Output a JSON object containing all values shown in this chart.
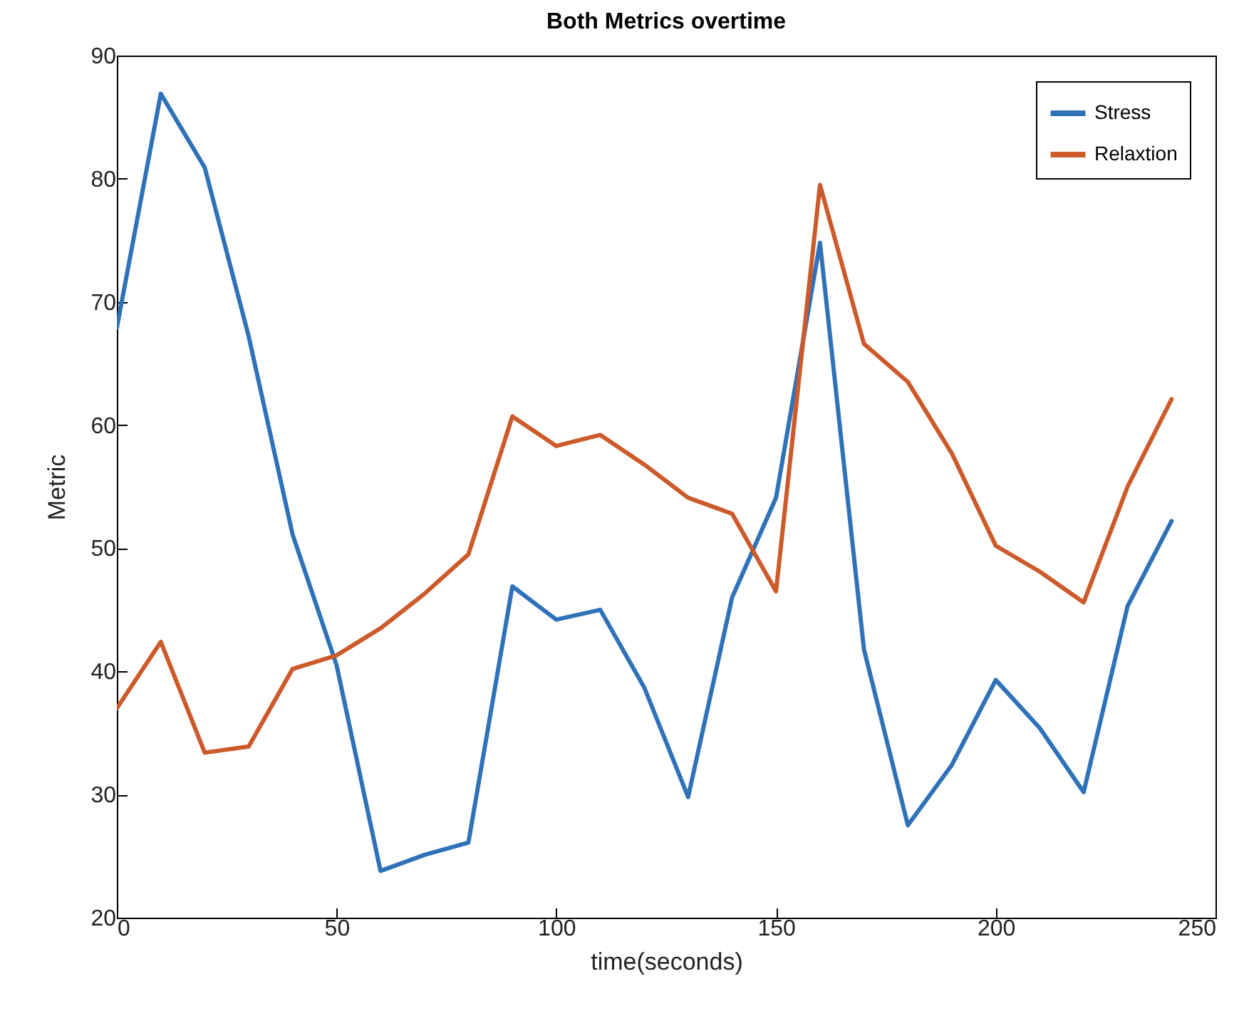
{
  "chart_data": {
    "type": "line",
    "title": "Both Metrics overtime",
    "xlabel": "time(seconds)",
    "ylabel": "Metric",
    "x": [
      0,
      10,
      20,
      30,
      40,
      50,
      60,
      70,
      80,
      90,
      100,
      110,
      120,
      130,
      140,
      150,
      160,
      170,
      180,
      190,
      200,
      210,
      220,
      230,
      240
    ],
    "series": [
      {
        "name": "Stress",
        "color": "#2f72b8",
        "values": [
          67.9,
          86.9,
          80.9,
          67.2,
          51.1,
          40.5,
          23.8,
          25.1,
          26.1,
          46.9,
          44.2,
          45.0,
          38.7,
          29.8,
          46.0,
          54.1,
          74.8,
          41.8,
          27.5,
          32.4,
          39.3,
          35.4,
          30.2,
          45.3,
          52.2
        ]
      },
      {
        "name": "Relaxtion",
        "color": "#cc5a2a",
        "values": [
          37.0,
          42.4,
          33.4,
          33.9,
          40.2,
          41.3,
          43.5,
          46.3,
          49.5,
          60.7,
          58.3,
          59.2,
          56.8,
          54.1,
          52.8,
          46.5,
          79.5,
          66.6,
          63.5,
          57.7,
          50.2,
          48.1,
          45.6,
          55.0,
          62.1
        ]
      }
    ],
    "xlim": [
      0,
      250
    ],
    "xticks": [
      0,
      50,
      100,
      150,
      200,
      250
    ],
    "ylim": [
      20,
      90
    ],
    "yticks": [
      20,
      30,
      40,
      50,
      60,
      70,
      80,
      90
    ],
    "legend": "top right",
    "line_style": "solid"
  }
}
